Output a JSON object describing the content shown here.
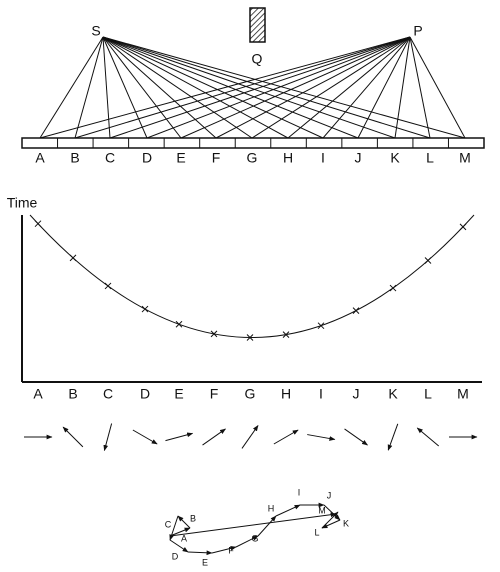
{
  "source": "S",
  "detector": "P",
  "screen": "Q",
  "mirror_points": [
    "A",
    "B",
    "C",
    "D",
    "E",
    "F",
    "G",
    "H",
    "I",
    "J",
    "K",
    "L",
    "M"
  ],
  "time_axis_label": "Time",
  "time_axis_points": [
    "A",
    "B",
    "C",
    "D",
    "E",
    "F",
    "G",
    "H",
    "I",
    "J",
    "K",
    "L",
    "M"
  ],
  "arrow_sum_labels": [
    "A",
    "B",
    "C",
    "D",
    "E",
    "F",
    "G",
    "H",
    "I",
    "J",
    "K",
    "L",
    "M"
  ]
}
